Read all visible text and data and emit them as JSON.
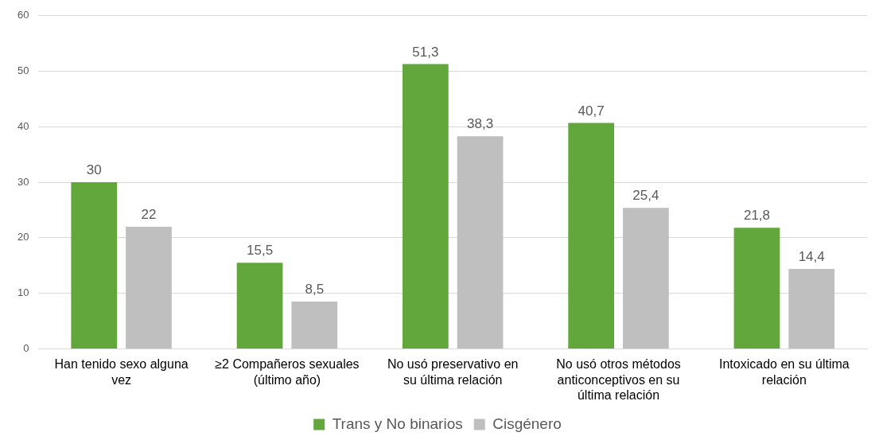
{
  "chart_data": {
    "type": "bar",
    "categories": [
      "Han tenido sexo alguna vez",
      "≥2 Compañeros sexuales (último año)",
      "No usó preservativo en su última relación",
      "No usó otros métodos anticonceptivos en su última relación",
      "Intoxicado en su última relación"
    ],
    "series": [
      {
        "name": "Trans y No binarios",
        "color": "#62a73b",
        "values": [
          30,
          15.5,
          51.3,
          40.7,
          21.8
        ],
        "value_labels": [
          "30",
          "15,5",
          "51,3",
          "40,7",
          "21,8"
        ]
      },
      {
        "name": "Cisgénero",
        "color": "#bfbfbf",
        "values": [
          22,
          8.5,
          38.3,
          25.4,
          14.4
        ],
        "value_labels": [
          "22",
          "8,5",
          "38,3",
          "25,4",
          "14,4"
        ]
      }
    ],
    "ylim": [
      0,
      60
    ],
    "yticks": [
      0,
      10,
      20,
      30,
      40,
      50,
      60
    ],
    "grid": "y",
    "legend": "bottom"
  }
}
